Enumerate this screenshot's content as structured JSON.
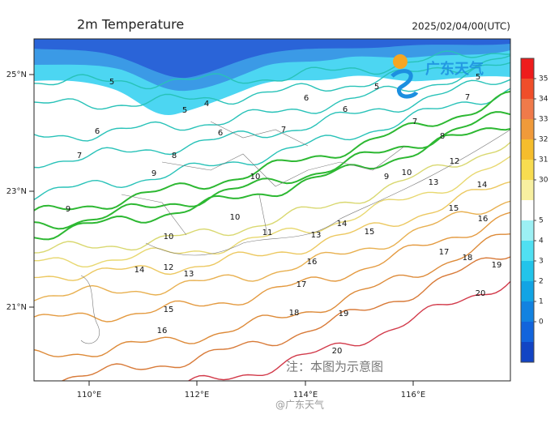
{
  "header": {
    "title": "2m Temperature",
    "time": "2025/02/04/00(UTC)"
  },
  "map": {
    "lat_labels": [
      "25°N",
      "23°N",
      "21°N"
    ],
    "lon_labels": [
      "110°E",
      "112°E",
      "114°E",
      "116°E"
    ]
  },
  "colorbar": {
    "labels": [
      "35",
      "34",
      "33",
      "32",
      "31",
      "30",
      "5",
      "4",
      "3",
      "2",
      "1",
      "0"
    ]
  },
  "contour_labels": [
    "5",
    "5",
    "4",
    "6",
    "7",
    "6",
    "8",
    "7",
    "6",
    "9",
    "9",
    "10",
    "10",
    "10",
    "11",
    "12",
    "13",
    "14",
    "13",
    "14",
    "15",
    "16",
    "17",
    "18",
    "19",
    "20",
    "15",
    "16",
    "17",
    "18",
    "19",
    "20",
    "13",
    "14",
    "15",
    "16",
    "12",
    "8",
    "7",
    "10",
    "9",
    "5",
    "6",
    "7",
    "5"
  ],
  "logo": "广东天气",
  "note": "注：本图为示意图",
  "watermark": "@广东天气"
}
